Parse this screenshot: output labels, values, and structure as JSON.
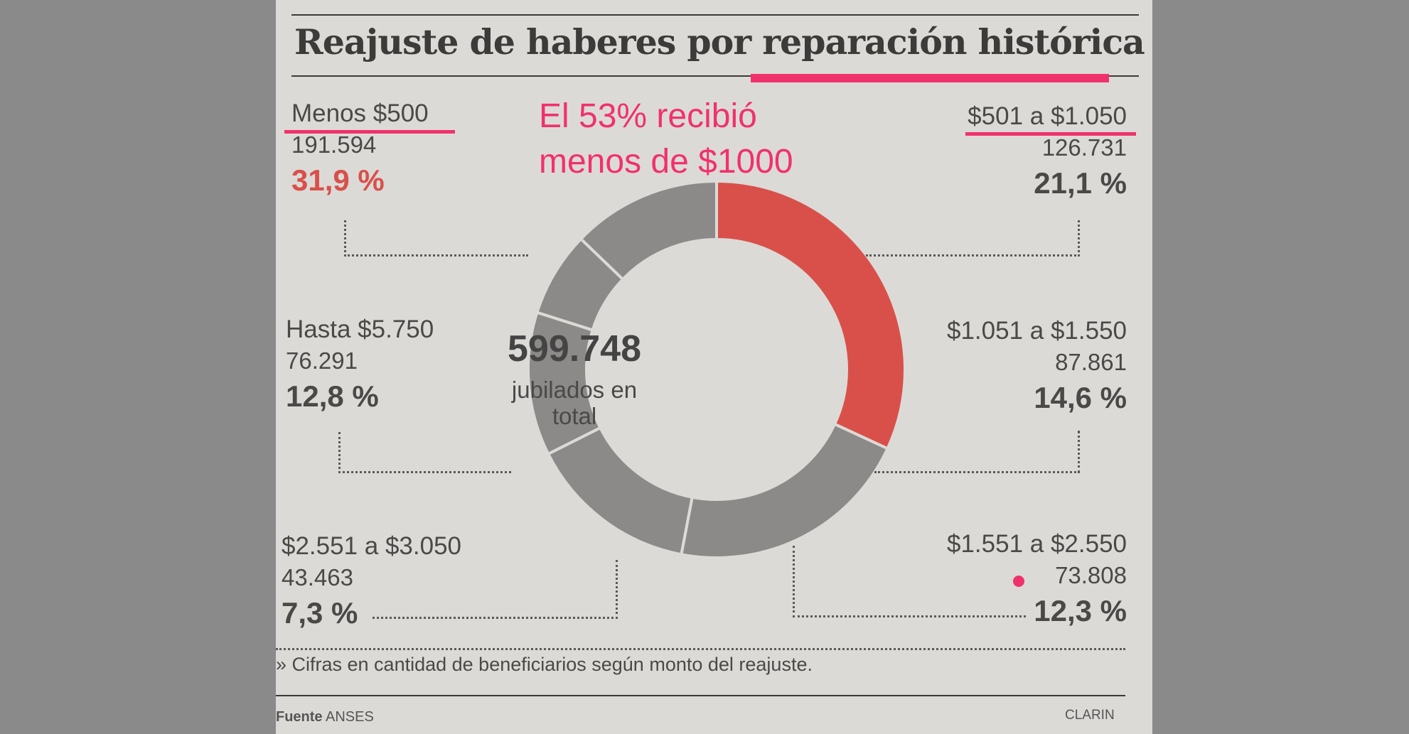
{
  "title_part1": "Reajuste de haberes por",
  "title_part2": "reparación histórica",
  "annotation_line1": "El 53% recibió",
  "annotation_line2": "menos de $1000",
  "center": {
    "total": "599.748",
    "line1": "jubilados en",
    "line2": "total"
  },
  "footnote": "» Cifras en cantidad de beneficiarios según monto del reajuste.",
  "source_label": "Fuente",
  "source_value": "ANSES",
  "credit": "CLARIN",
  "colors": {
    "highlight": "#d9504a",
    "slice": "#8c8a88",
    "annotation": "#f0326c"
  },
  "chart_data": {
    "type": "pie",
    "style": "donut",
    "labels": [
      "Menos $500",
      "$501 a $1.050",
      "$1.051 a $1.550",
      "$1.551 a $2.550",
      "$2.551 a $3.050",
      "Hasta $5.750"
    ],
    "counts": [
      "191.594",
      "126.731",
      "87.861",
      "73.808",
      "43.463",
      "76.291"
    ],
    "pct_labels": [
      "31,9 %",
      "21,1 %",
      "14,6 %",
      "12,3 %",
      "7,3 %",
      "12,8 %"
    ],
    "values": [
      31.9,
      21.1,
      14.6,
      12.3,
      7.3,
      12.8
    ],
    "highlighted": [
      "Menos $500"
    ]
  }
}
